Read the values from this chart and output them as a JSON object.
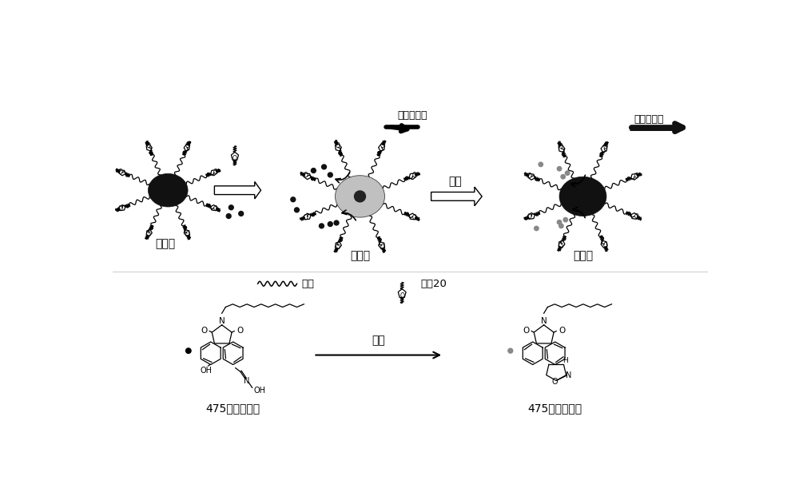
{
  "bg_color": "#ffffff",
  "text_color": "#111111",
  "label_you_ying_guang": "有荧光",
  "label_wu_ying_guang": "无荧光",
  "label_you_ying_guang2": "有荧光",
  "label_wu_lan_se": "无蓝色荧光",
  "label_you_lan_se": "有蓝色荧光",
  "label_nong_yao": "农药",
  "label_475_you": "475纳米有吸收",
  "label_475_wu": "475纳米无吸收",
  "label_you_suan": "油酸",
  "label_tu_wen": "吐温20",
  "label_nong_yao2": "农药",
  "p1x": 1.1,
  "p1y": 4.2,
  "p2x": 4.2,
  "p2y": 4.1,
  "p3x": 7.8,
  "p3y": 4.1
}
